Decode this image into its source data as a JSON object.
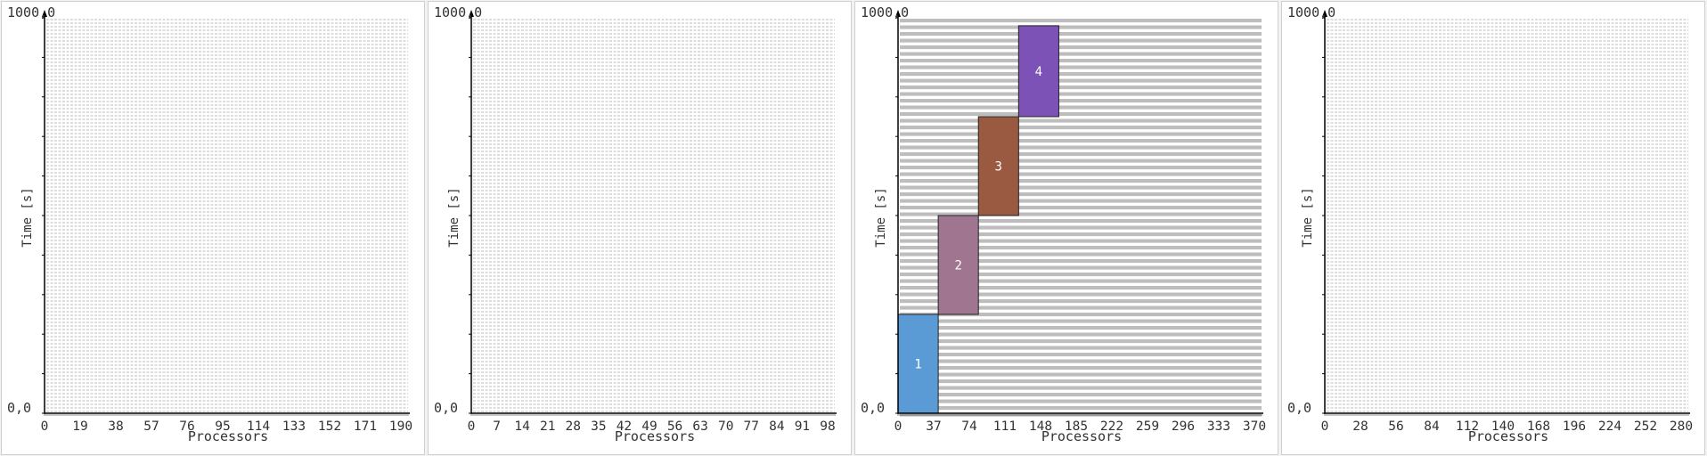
{
  "chart_data": [
    {
      "type": "gantt",
      "xlabel": "Processors",
      "ylabel": "Time [s]",
      "y_top_label": "1000,0",
      "y_bottom_label": "0,0",
      "xlim": [
        0,
        200
      ],
      "ylim": [
        0,
        1000
      ],
      "x_ticks": [
        "0",
        "19",
        "38",
        "57",
        "76",
        "95",
        "114",
        "133",
        "152",
        "171",
        "190"
      ],
      "background": "light-dense-stripes",
      "jobs": []
    },
    {
      "type": "gantt",
      "xlabel": "Processors",
      "ylabel": "Time [s]",
      "y_top_label": "1000,0",
      "y_bottom_label": "0,0",
      "xlim": [
        0,
        100
      ],
      "ylim": [
        0,
        1000
      ],
      "x_ticks": [
        "0",
        "7",
        "14",
        "21",
        "28",
        "35",
        "42",
        "49",
        "56",
        "63",
        "70",
        "77",
        "84",
        "91",
        "98"
      ],
      "background": "light-dense-stripes",
      "jobs": []
    },
    {
      "type": "gantt",
      "xlabel": "Processors",
      "ylabel": "Time [s]",
      "y_top_label": "1000,0",
      "y_bottom_label": "0,0",
      "xlim": [
        0,
        407
      ],
      "ylim": [
        0,
        1000
      ],
      "x_ticks": [
        "0",
        "37",
        "74",
        "111",
        "148",
        "185",
        "222",
        "259",
        "296",
        "333",
        "370"
      ],
      "background": "grey-stripes",
      "jobs": [
        {
          "label": "1",
          "x0": 0,
          "x1": 45,
          "t0": 0,
          "t1": 250,
          "color": "#5b9bd5"
        },
        {
          "label": "2",
          "x0": 45,
          "x1": 90,
          "t0": 250,
          "t1": 500,
          "color": "#a0758f"
        },
        {
          "label": "3",
          "x0": 90,
          "x1": 135,
          "t0": 500,
          "t1": 750,
          "color": "#9a5a42"
        },
        {
          "label": "4",
          "x0": 135,
          "x1": 180,
          "t0": 750,
          "t1": 980,
          "color": "#7d52b7"
        }
      ]
    },
    {
      "type": "gantt",
      "xlabel": "Processors",
      "ylabel": "Time [s]",
      "y_top_label": "1000,0",
      "y_bottom_label": "0,0",
      "xlim": [
        0,
        295
      ],
      "ylim": [
        0,
        1000
      ],
      "x_ticks": [
        "0",
        "28",
        "56",
        "84",
        "112",
        "140",
        "168",
        "196",
        "224",
        "252",
        "280"
      ],
      "background": "light-dense-stripes",
      "jobs": []
    }
  ]
}
